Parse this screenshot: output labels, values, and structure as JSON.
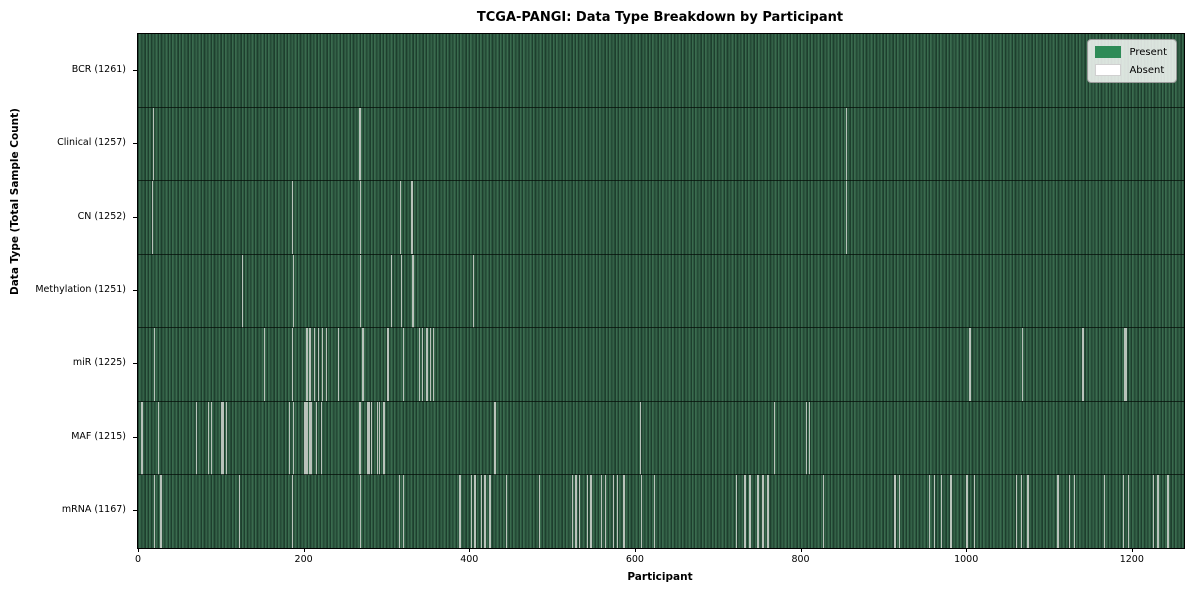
{
  "title": "TCGA-PANGI: Data Type Breakdown by Participant",
  "axes": {
    "x_label": "Participant",
    "y_label": "Data Type (Total Sample Count)",
    "x_ticks": [
      0,
      200,
      400,
      600,
      800,
      1000,
      1200
    ]
  },
  "legend": {
    "present_label": "Present",
    "absent_label": "Absent",
    "present_color": "#2e8b57",
    "absent_color": "#ffffff"
  },
  "chart_data": {
    "type": "heatmap",
    "title": "TCGA-PANGI: Data Type Breakdown by Participant",
    "xlabel": "Participant",
    "ylabel": "Data Type (Total Sample Count)",
    "x_range": [
      0,
      1263
    ],
    "n_participants": 1263,
    "legend_position": "upper right",
    "present_color": "#2e8b57",
    "absent_color": "#ffffff",
    "rows": [
      {
        "label": "BCR (1261)",
        "data_type": "BCR",
        "present_count": 1261,
        "absent_participants": []
      },
      {
        "label": "Clinical (1257)",
        "data_type": "Clinical",
        "present_count": 1257,
        "absent_participants": [
          18,
          267,
          855
        ]
      },
      {
        "label": "CN (1252)",
        "data_type": "CN",
        "present_count": 1252,
        "absent_participants": [
          17,
          186,
          268,
          316,
          330,
          855
        ]
      },
      {
        "label": "Methylation (1251)",
        "data_type": "Methylation",
        "present_count": 1251,
        "absent_participants": [
          125,
          187,
          268,
          305,
          317,
          331,
          404
        ]
      },
      {
        "label": "miR (1225)",
        "data_type": "miR",
        "present_count": 1225,
        "absent_participants": [
          19,
          152,
          186,
          203,
          207,
          212,
          217,
          222,
          227,
          241,
          271,
          301,
          320,
          339,
          343,
          348,
          352,
          356,
          1004,
          1067,
          1140,
          1191,
          1193
        ]
      },
      {
        "label": "MAF (1215)",
        "data_type": "MAF",
        "present_count": 1215,
        "absent_participants": [
          4,
          24,
          70,
          84,
          88,
          100,
          102,
          106,
          182,
          187,
          200,
          202,
          204,
          206,
          208,
          215,
          221,
          267,
          277,
          279,
          281,
          288,
          291,
          296,
          430,
          606,
          768,
          806,
          810
        ]
      },
      {
        "label": "mRNA (1167)",
        "data_type": "mRNA",
        "present_count": 1167,
        "absent_participants": [
          19,
          27,
          122,
          186,
          268,
          315,
          320,
          388,
          402,
          406,
          414,
          418,
          424,
          444,
          484,
          524,
          528,
          532,
          542,
          546,
          559,
          564,
          573,
          578,
          586,
          607,
          623,
          722,
          732,
          738,
          748,
          754,
          760,
          827,
          913,
          919,
          955,
          961,
          969,
          981,
          1000,
          1009,
          1060,
          1066,
          1074,
          1110,
          1124,
          1130,
          1166,
          1189,
          1195,
          1225,
          1231,
          1243
        ]
      }
    ]
  }
}
